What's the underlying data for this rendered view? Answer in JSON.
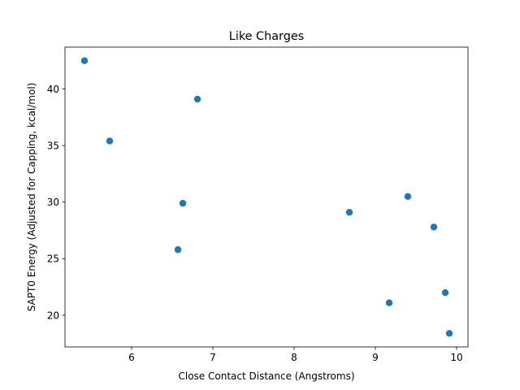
{
  "chart_data": {
    "type": "scatter",
    "title": "Like Charges",
    "xlabel": "Close Contact Distance (Angstroms)",
    "ylabel": "SAPT0 Energy (Adjusted for Capping, kcal/mol)",
    "xlim": [
      5.18,
      10.14
    ],
    "ylim": [
      17.2,
      43.7
    ],
    "xticks": [
      6,
      7,
      8,
      9,
      10
    ],
    "yticks": [
      20,
      25,
      30,
      35,
      40
    ],
    "grid": false,
    "marker_color": "#1f77b4",
    "series": [
      {
        "x": [
          5.42,
          5.73,
          6.81,
          6.63,
          6.57,
          8.68,
          9.4,
          9.72,
          9.17,
          9.86,
          9.91
        ],
        "y": [
          42.5,
          35.4,
          39.1,
          29.9,
          25.8,
          29.1,
          30.5,
          27.8,
          21.1,
          22.0,
          18.4
        ]
      }
    ]
  }
}
